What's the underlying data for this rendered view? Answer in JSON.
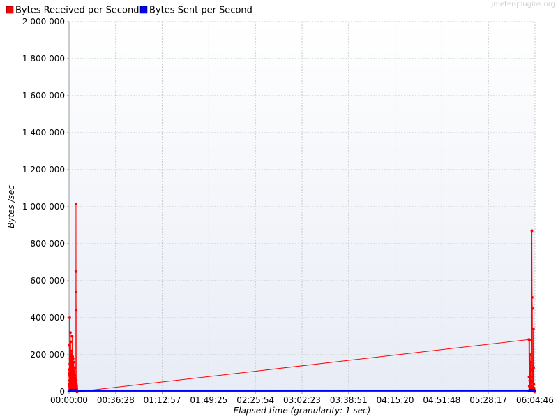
{
  "watermark": "jmeter-plugins.org",
  "colors": {
    "received": "#ff0000",
    "sent": "#0000ff",
    "grid": "#c8c8c8",
    "plot_bg_top": "#ffffff",
    "plot_bg_bottom": "#e8ecf6",
    "axis": "#999999"
  },
  "chart_data": {
    "type": "line",
    "title": "",
    "xlabel": "Elapsed time (granularity: 1 sec)",
    "ylabel": "Bytes /sec",
    "xlim": [
      0,
      21886
    ],
    "ylim": [
      0,
      2000000
    ],
    "x_unit": "seconds elapsed",
    "grid": true,
    "legend_position": "top-left",
    "xticks": [
      {
        "value": 0,
        "label": "00:00:00"
      },
      {
        "value": 2188,
        "label": "00:36:28"
      },
      {
        "value": 4377,
        "label": "01:12:57"
      },
      {
        "value": 6565,
        "label": "01:49:25"
      },
      {
        "value": 8754,
        "label": "02:25:54"
      },
      {
        "value": 10943,
        "label": "03:02:23"
      },
      {
        "value": 13131,
        "label": "03:38:51"
      },
      {
        "value": 15320,
        "label": "04:15:20"
      },
      {
        "value": 17508,
        "label": "04:51:48"
      },
      {
        "value": 19697,
        "label": "05:28:17"
      },
      {
        "value": 21886,
        "label": "06:04:46"
      }
    ],
    "yticks": [
      {
        "value": 0,
        "label": "0"
      },
      {
        "value": 200000,
        "label": "200 000"
      },
      {
        "value": 400000,
        "label": "400 000"
      },
      {
        "value": 600000,
        "label": "600 000"
      },
      {
        "value": 800000,
        "label": "800 000"
      },
      {
        "value": 1000000,
        "label": "1 000 000"
      },
      {
        "value": 1200000,
        "label": "1 200 000"
      },
      {
        "value": 1400000,
        "label": "1 400 000"
      },
      {
        "value": 1600000,
        "label": "1 600 000"
      },
      {
        "value": 1800000,
        "label": "1 800 000"
      },
      {
        "value": 2000000,
        "label": "2 000 000"
      }
    ],
    "series": [
      {
        "name": "Bytes Received per Second",
        "color": "#ff0000",
        "x": [
          1,
          5,
          10,
          14,
          18,
          22,
          26,
          30,
          34,
          38,
          42,
          46,
          50,
          55,
          60,
          65,
          70,
          75,
          80,
          85,
          90,
          96,
          100,
          104,
          108,
          112,
          116,
          120,
          124,
          128,
          132,
          136,
          140,
          144,
          148,
          152,
          156,
          160,
          164,
          168,
          172,
          176,
          180,
          185,
          190,
          195,
          200,
          205,
          210,
          214,
          218,
          222,
          226,
          230,
          234,
          238,
          242,
          246,
          250,
          254,
          258,
          262,
          266,
          270,
          274,
          278,
          282,
          286,
          290,
          294,
          298,
          302,
          306,
          310,
          314,
          318,
          322,
          326,
          330,
          334,
          338,
          343,
          348,
          353,
          358,
          363,
          368,
          373,
          378,
          382,
          386,
          21600,
          21610,
          21620,
          21630,
          21640,
          21650,
          21660,
          21670,
          21680,
          21690,
          21700,
          21710,
          21720,
          21730,
          21740,
          21750,
          21760,
          21770,
          21780,
          21790,
          21800,
          21810,
          21820,
          21830,
          21840,
          21850,
          21860
        ],
        "values": [
          40000,
          120000,
          90000,
          60000,
          250000,
          100000,
          30000,
          400000,
          20000,
          150000,
          80000,
          10000,
          180000,
          50000,
          320000,
          90000,
          20000,
          270000,
          100000,
          60000,
          150000,
          20000,
          10000,
          200000,
          80000,
          30000,
          130000,
          60000,
          10000,
          220000,
          140000,
          20000,
          90000,
          300000,
          40000,
          120000,
          10000,
          80000,
          190000,
          30000,
          60000,
          15000,
          110000,
          40000,
          180000,
          20000,
          70000,
          130000,
          10000,
          90000,
          50000,
          160000,
          20000,
          70000,
          110000,
          30000,
          10000,
          60000,
          90000,
          20000,
          40000,
          130000,
          10000,
          80000,
          30000,
          60000,
          20000,
          50000,
          10000,
          70000,
          30000,
          10000,
          40000,
          60000,
          20000,
          30000,
          650000,
          1015000,
          540000,
          440000,
          60000,
          40000,
          20000,
          30000,
          10000,
          20000,
          0,
          0,
          0,
          0,
          0,
          282000,
          80000,
          30000,
          280000,
          60000,
          20000,
          200000,
          130000,
          40000,
          160000,
          20000,
          80000,
          50000,
          10000,
          870000,
          510000,
          450000,
          120000,
          30000,
          60000,
          20000,
          340000,
          130000,
          40000,
          20000,
          10000,
          0
        ]
      },
      {
        "name": "Bytes Sent per Second",
        "color": "#0000ff",
        "x": [
          0,
          20,
          40,
          60,
          80,
          100,
          120,
          140,
          160,
          180,
          200,
          220,
          240,
          260,
          280,
          300,
          320,
          340,
          360,
          380,
          400,
          21600,
          21620,
          21640,
          21660,
          21680,
          21700,
          21720,
          21740,
          21760,
          21780,
          21800,
          21820,
          21840,
          21860,
          21880
        ],
        "values": [
          4000,
          6000,
          5000,
          7000,
          6000,
          5000,
          8000,
          6000,
          5000,
          7000,
          6000,
          5000,
          6000,
          7000,
          5000,
          6000,
          8000,
          7000,
          6000,
          5000,
          4000,
          5000,
          6000,
          7000,
          6000,
          5000,
          7000,
          6000,
          8000,
          7000,
          6000,
          5000,
          6000,
          7000,
          5000,
          4000
        ]
      }
    ]
  }
}
